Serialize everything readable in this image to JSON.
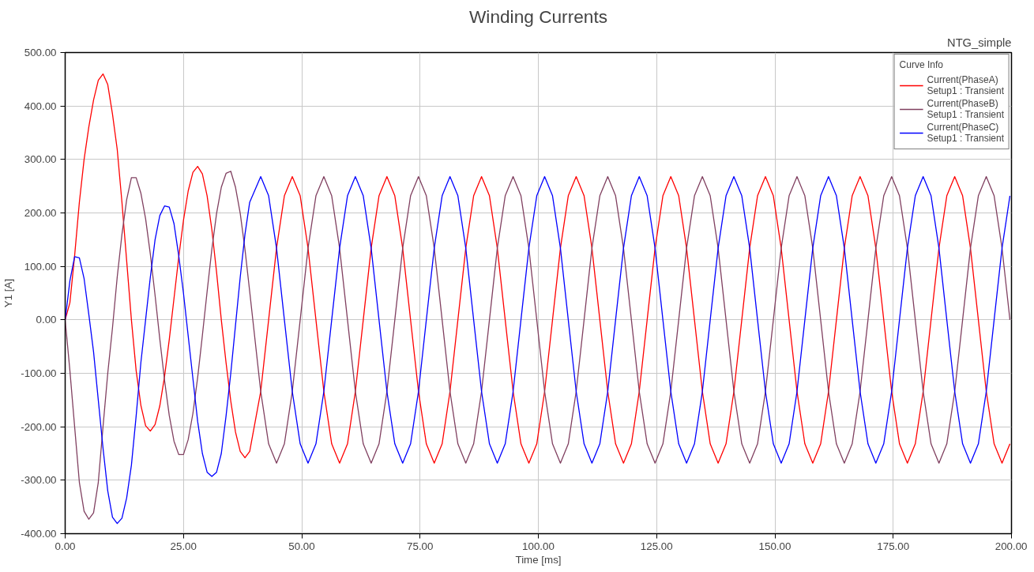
{
  "chart_data": {
    "type": "line",
    "title": "Winding Currents",
    "xlabel": "Time [ms]",
    "ylabel": "Y1 [A]",
    "legend_title": "Curve Info",
    "annotations": [
      "NTG_simple"
    ],
    "x": [
      0,
      1,
      2,
      3,
      4,
      5,
      6,
      7,
      8,
      9,
      10,
      11,
      12,
      13,
      14,
      15,
      16,
      17,
      18,
      19,
      20,
      21,
      22,
      23,
      24,
      25,
      26,
      27,
      28,
      29,
      30,
      31,
      32,
      33,
      34,
      35,
      36,
      37,
      38,
      39,
      41.33,
      43,
      44.67,
      46.33,
      48,
      49.67,
      51.33,
      53,
      54.67,
      56.33,
      58,
      59.67,
      61.33,
      63,
      64.67,
      66.33,
      68,
      69.67,
      71.33,
      73,
      74.67,
      76.33,
      78,
      79.67,
      81.33,
      83,
      84.67,
      86.33,
      88,
      89.67,
      91.33,
      93,
      94.67,
      96.33,
      98,
      99.67,
      101.33,
      103,
      104.67,
      106.33,
      108,
      109.67,
      111.33,
      113,
      114.67,
      116.33,
      118,
      119.67,
      121.33,
      123,
      124.67,
      126.33,
      128,
      129.67,
      131.33,
      133,
      134.67,
      136.33,
      138,
      139.67,
      141.33,
      143,
      144.67,
      146.33,
      148,
      149.67,
      151.33,
      153,
      154.67,
      156.33,
      158,
      159.67,
      161.33,
      163,
      164.67,
      166.33,
      168,
      169.67,
      171.33,
      173,
      174.67,
      176.33,
      178,
      179.67,
      181.33,
      183,
      184.67,
      186.33,
      188,
      189.67,
      191.33,
      193,
      194.67,
      196.33,
      198,
      199.67
    ],
    "series": [
      {
        "name": "Current(PhaseA)\nSetup1 : Transient",
        "color": "#ff0000",
        "values": [
          0,
          32,
          120,
          220,
          300,
          361,
          411,
          448,
          460,
          440,
          385,
          319,
          220,
          110,
          0,
          -95,
          -160,
          -198,
          -208,
          -196,
          -161,
          -106,
          -37,
          40,
          117,
          186,
          241,
          276,
          287,
          273,
          232,
          169,
          89,
          0,
          -80,
          -152,
          -210,
          -246,
          -258,
          -246,
          -134,
          0,
          134,
          232,
          268,
          232,
          134,
          0,
          -134,
          -232,
          -268,
          -232,
          -134,
          0,
          134,
          232,
          268,
          232,
          134,
          0,
          -134,
          -232,
          -268,
          -232,
          -134,
          0,
          134,
          232,
          268,
          232,
          134,
          0,
          -134,
          -232,
          -268,
          -232,
          -134,
          0,
          134,
          232,
          268,
          232,
          134,
          0,
          -134,
          -232,
          -268,
          -232,
          -134,
          0,
          134,
          232,
          268,
          232,
          134,
          0,
          -134,
          -232,
          -268,
          -232,
          -134,
          0,
          134,
          232,
          268,
          232,
          134,
          0,
          -134,
          -232,
          -268,
          -232,
          -134,
          0,
          134,
          232,
          268,
          232,
          134,
          0,
          -134,
          -232,
          -268,
          -232,
          -134,
          0,
          134,
          232,
          268,
          232,
          134,
          0,
          -134,
          -232,
          -268,
          -232
        ]
      },
      {
        "name": "Current(PhaseB)\nSetup1 : Transient",
        "color": "#804060",
        "values": [
          0,
          -95,
          -200,
          -304,
          -358,
          -373,
          -361,
          -304,
          -200,
          -100,
          -15,
          80,
          160,
          225,
          266,
          266,
          237,
          189,
          123,
          46,
          -36,
          -113,
          -179,
          -227,
          -252,
          -252,
          -224,
          -175,
          -108,
          -29,
          53,
          132,
          199,
          248,
          274,
          278,
          248,
          199,
          132,
          53,
          -134,
          -232,
          -268,
          -232,
          -134,
          0,
          134,
          232,
          268,
          232,
          134,
          0,
          -134,
          -232,
          -268,
          -232,
          -134,
          0,
          134,
          232,
          268,
          232,
          134,
          0,
          -134,
          -232,
          -268,
          -232,
          -134,
          0,
          134,
          232,
          268,
          232,
          134,
          0,
          -134,
          -232,
          -268,
          -232,
          -134,
          0,
          134,
          232,
          268,
          232,
          134,
          0,
          -134,
          -232,
          -268,
          -232,
          -134,
          0,
          134,
          232,
          268,
          232,
          134,
          0,
          -134,
          -232,
          -268,
          -232,
          -134,
          0,
          134,
          232,
          268,
          232,
          134,
          0,
          -134,
          -232,
          -268,
          -232,
          -134,
          0,
          134,
          232,
          268,
          232,
          134,
          0,
          -134,
          -232,
          -268,
          -232,
          -134,
          0,
          134,
          232,
          268,
          232,
          134,
          0
        ]
      },
      {
        "name": "Current(PhaseC)\nSetup1 : Transient",
        "color": "#0000ff",
        "values": [
          0,
          73,
          118,
          116,
          77,
          10,
          -60,
          -150,
          -240,
          -320,
          -369,
          -381,
          -371,
          -333,
          -272,
          -180,
          -80,
          0,
          80,
          150,
          195,
          213,
          211,
          180,
          120,
          50,
          -30,
          -110,
          -190,
          -250,
          -285,
          -293,
          -285,
          -250,
          -180,
          -100,
          -10,
          80,
          160,
          220,
          268,
          232,
          134,
          0,
          -134,
          -232,
          -268,
          -232,
          -134,
          0,
          134,
          232,
          268,
          232,
          134,
          0,
          -134,
          -232,
          -268,
          -232,
          -134,
          0,
          134,
          232,
          268,
          232,
          134,
          0,
          -134,
          -232,
          -268,
          -232,
          -134,
          0,
          134,
          232,
          268,
          232,
          134,
          0,
          -134,
          -232,
          -268,
          -232,
          -134,
          0,
          134,
          232,
          268,
          232,
          134,
          0,
          -134,
          -232,
          -268,
          -232,
          -134,
          0,
          134,
          232,
          268,
          232,
          134,
          0,
          -134,
          -232,
          -268,
          -232,
          -134,
          0,
          134,
          232,
          268,
          232,
          134,
          0,
          -134,
          -232,
          -268,
          -232,
          -134,
          0,
          134,
          232,
          268,
          232,
          134,
          0,
          -134,
          -232,
          -268,
          -232,
          -134,
          0,
          134,
          232
        ]
      }
    ],
    "xlim": [
      0,
      200
    ],
    "ylim": [
      -400,
      500
    ],
    "xticks": [
      {
        "value": 0,
        "label": "0.00"
      },
      {
        "value": 25,
        "label": "25.00"
      },
      {
        "value": 50,
        "label": "50.00"
      },
      {
        "value": 75,
        "label": "75.00"
      },
      {
        "value": 100,
        "label": "100.00"
      },
      {
        "value": 125,
        "label": "125.00"
      },
      {
        "value": 150,
        "label": "150.00"
      },
      {
        "value": 175,
        "label": "175.00"
      },
      {
        "value": 200,
        "label": "200.00"
      }
    ],
    "yticks": [
      {
        "value": -400,
        "label": "-400.00"
      },
      {
        "value": -300,
        "label": "-300.00"
      },
      {
        "value": -200,
        "label": "-200.00"
      },
      {
        "value": -100,
        "label": "-100.00"
      },
      {
        "value": 0,
        "label": "0.00"
      },
      {
        "value": 100,
        "label": "100.00"
      },
      {
        "value": 200,
        "label": "200.00"
      },
      {
        "value": 300,
        "label": "300.00"
      },
      {
        "value": 400,
        "label": "400.00"
      },
      {
        "value": 500,
        "label": "500.00"
      }
    ],
    "grid": true,
    "legend": "top right",
    "line_style": "solid",
    "marker": "none"
  }
}
